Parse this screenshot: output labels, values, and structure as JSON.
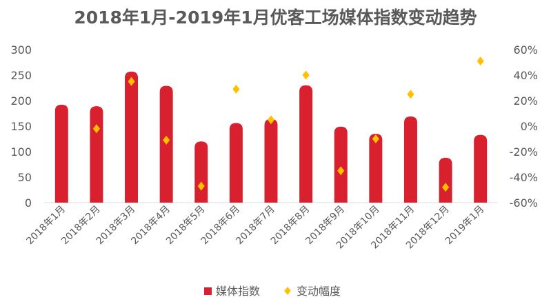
{
  "chart_data": {
    "type": "bar+scatter",
    "title": "2018年1月-2019年1月优客工场媒体指数变动趋势",
    "categories": [
      "2018年1月",
      "2018年2月",
      "2018年3月",
      "2018年4月",
      "2018年5月",
      "2018年6月",
      "2018年7月",
      "2018年8月",
      "2018年9月",
      "2018年10月",
      "2018年11月",
      "2018年12月",
      "2019年1月"
    ],
    "series": [
      {
        "name": "媒体指数",
        "type": "bar",
        "axis": "left",
        "color": "#d9202e",
        "values": [
          192,
          189,
          257,
          229,
          120,
          156,
          164,
          230,
          149,
          135,
          169,
          88,
          133
        ]
      },
      {
        "name": "变动幅度",
        "type": "scatter",
        "axis": "right",
        "color": "#ffc000",
        "values": [
          null,
          -2,
          35,
          -11,
          -47,
          29,
          5,
          40,
          -35,
          -10,
          25,
          -48,
          51
        ]
      }
    ],
    "left_axis": {
      "ylim": [
        0,
        300
      ],
      "ticks": [
        "0",
        "50",
        "100",
        "150",
        "200",
        "250",
        "300"
      ]
    },
    "right_axis": {
      "ylim": [
        -60,
        60
      ],
      "ticks": [
        "-60%",
        "-40%",
        "-20%",
        "0%",
        "20%",
        "40%",
        "60%"
      ]
    },
    "legend": {
      "position": "bottom",
      "items": [
        "媒体指数",
        "变动幅度"
      ]
    },
    "grid": false
  }
}
